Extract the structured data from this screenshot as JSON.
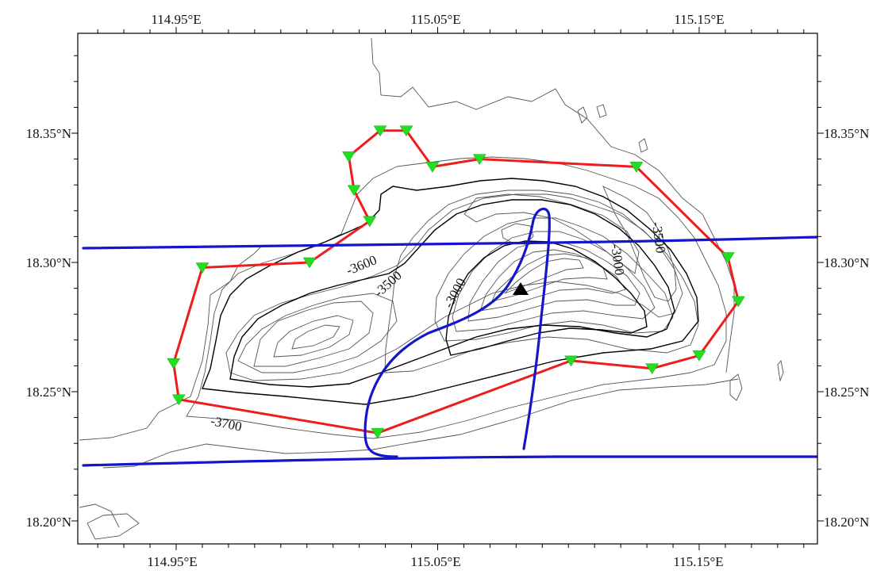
{
  "map": {
    "lon_ticks": [
      "114.95°E",
      "115.05°E",
      "115.15°E"
    ],
    "lat_ticks": [
      "18.35°N",
      "18.30°N",
      "18.25°N",
      "18.20°N"
    ],
    "contour_labels": [
      "-3600",
      "-3500",
      "-3000",
      "-3000",
      "-3500",
      "-3700"
    ],
    "colors": {
      "station_line": "#ee1c1c",
      "station_marker": "#22dd22",
      "survey_track": "#1515cc",
      "contour_thin": "#555555",
      "contour_bold": "#000000",
      "summit_marker": "#000000"
    },
    "stations": [
      {
        "lon": 114.949,
        "lat": 18.261
      },
      {
        "lon": 114.951,
        "lat": 18.247
      },
      {
        "lon": 115.027,
        "lat": 18.234
      },
      {
        "lon": 115.101,
        "lat": 18.262
      },
      {
        "lon": 115.132,
        "lat": 18.259
      },
      {
        "lon": 115.15,
        "lat": 18.264
      },
      {
        "lon": 115.165,
        "lat": 18.285
      },
      {
        "lon": 115.161,
        "lat": 18.302
      },
      {
        "lon": 115.126,
        "lat": 18.337
      },
      {
        "lon": 115.066,
        "lat": 18.34
      },
      {
        "lon": 115.048,
        "lat": 18.337
      },
      {
        "lon": 115.038,
        "lat": 18.351
      },
      {
        "lon": 115.028,
        "lat": 18.351
      },
      {
        "lon": 115.016,
        "lat": 18.341
      },
      {
        "lon": 115.018,
        "lat": 18.328
      },
      {
        "lon": 115.024,
        "lat": 18.316
      },
      {
        "lon": 115.001,
        "lat": 18.3
      },
      {
        "lon": 114.96,
        "lat": 18.298
      }
    ],
    "summit": {
      "lon": 115.083,
      "lat": 18.289
    }
  }
}
